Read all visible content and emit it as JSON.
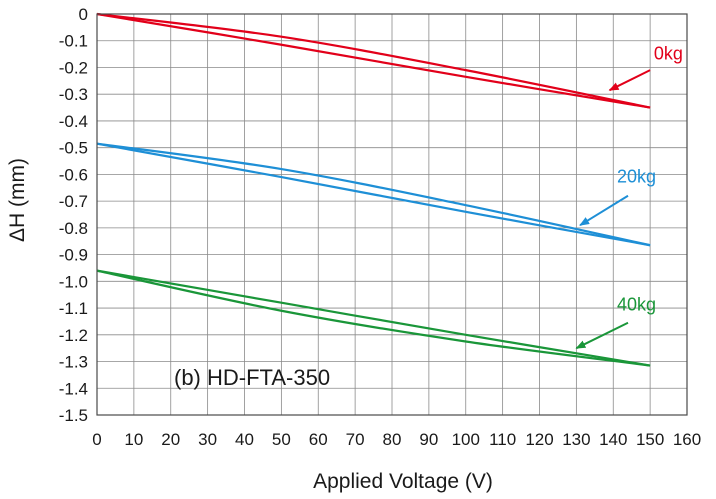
{
  "chart_data": {
    "type": "line",
    "title": "",
    "panel_label": "(b) HD-FTA-350",
    "xlabel": "Applied Voltage (V)",
    "ylabel": "ΔH (mm)",
    "xlim": [
      0,
      160
    ],
    "ylim": [
      -1.5,
      0
    ],
    "xticks": [
      0,
      10,
      20,
      30,
      40,
      50,
      60,
      70,
      80,
      90,
      100,
      110,
      120,
      130,
      140,
      150,
      160
    ],
    "yticks": [
      0,
      -0.1,
      -0.2,
      -0.3,
      -0.4,
      -0.5,
      -0.6,
      -0.7,
      -0.8,
      -0.9,
      -1.0,
      -1.1,
      -1.2,
      -1.3,
      -1.4,
      -1.5
    ],
    "ytick_labels": [
      "0",
      "-0.1",
      "-0.2",
      "-0.3",
      "-0.4",
      "-0.5",
      "-0.6",
      "-0.7",
      "-0.8",
      "-0.9",
      "-1.0",
      "-1.1",
      "-1.2",
      "-1.3",
      "-1.4",
      "-1.5"
    ],
    "grid": true,
    "series": [
      {
        "name": "0kg",
        "color": "#e2001a",
        "upper": {
          "x": [
            0,
            50,
            100,
            150
          ],
          "y": [
            0,
            -0.085,
            -0.21,
            -0.35
          ]
        },
        "lower": {
          "x": [
            0,
            50,
            100,
            150
          ],
          "y": [
            0,
            -0.115,
            -0.235,
            -0.35
          ]
        },
        "annotation": {
          "text": "0kg",
          "text_x": 151,
          "text_y": -0.17,
          "arrow_from": [
            150,
            -0.21
          ],
          "arrow_to": [
            139,
            -0.285
          ]
        }
      },
      {
        "name": "20kg",
        "color": "#1e8fd6",
        "upper": {
          "x": [
            0,
            50,
            100,
            150
          ],
          "y": [
            -0.485,
            -0.58,
            -0.715,
            -0.865
          ]
        },
        "lower": {
          "x": [
            0,
            50,
            100,
            150
          ],
          "y": [
            -0.485,
            -0.61,
            -0.74,
            -0.865
          ]
        },
        "annotation": {
          "text": "20kg",
          "text_x": 141,
          "text_y": -0.63,
          "arrow_from": [
            144,
            -0.68
          ],
          "arrow_to": [
            131,
            -0.79
          ]
        }
      },
      {
        "name": "40kg",
        "color": "#1a9639",
        "upper": {
          "x": [
            0,
            50,
            100,
            150
          ],
          "y": [
            -0.96,
            -1.08,
            -1.2,
            -1.315
          ]
        },
        "lower": {
          "x": [
            0,
            50,
            100,
            150
          ],
          "y": [
            -0.96,
            -1.11,
            -1.225,
            -1.315
          ]
        },
        "annotation": {
          "text": "40kg",
          "text_x": 141,
          "text_y": -1.11,
          "arrow_from": [
            144,
            -1.155
          ],
          "arrow_to": [
            130,
            -1.25
          ]
        }
      }
    ]
  }
}
